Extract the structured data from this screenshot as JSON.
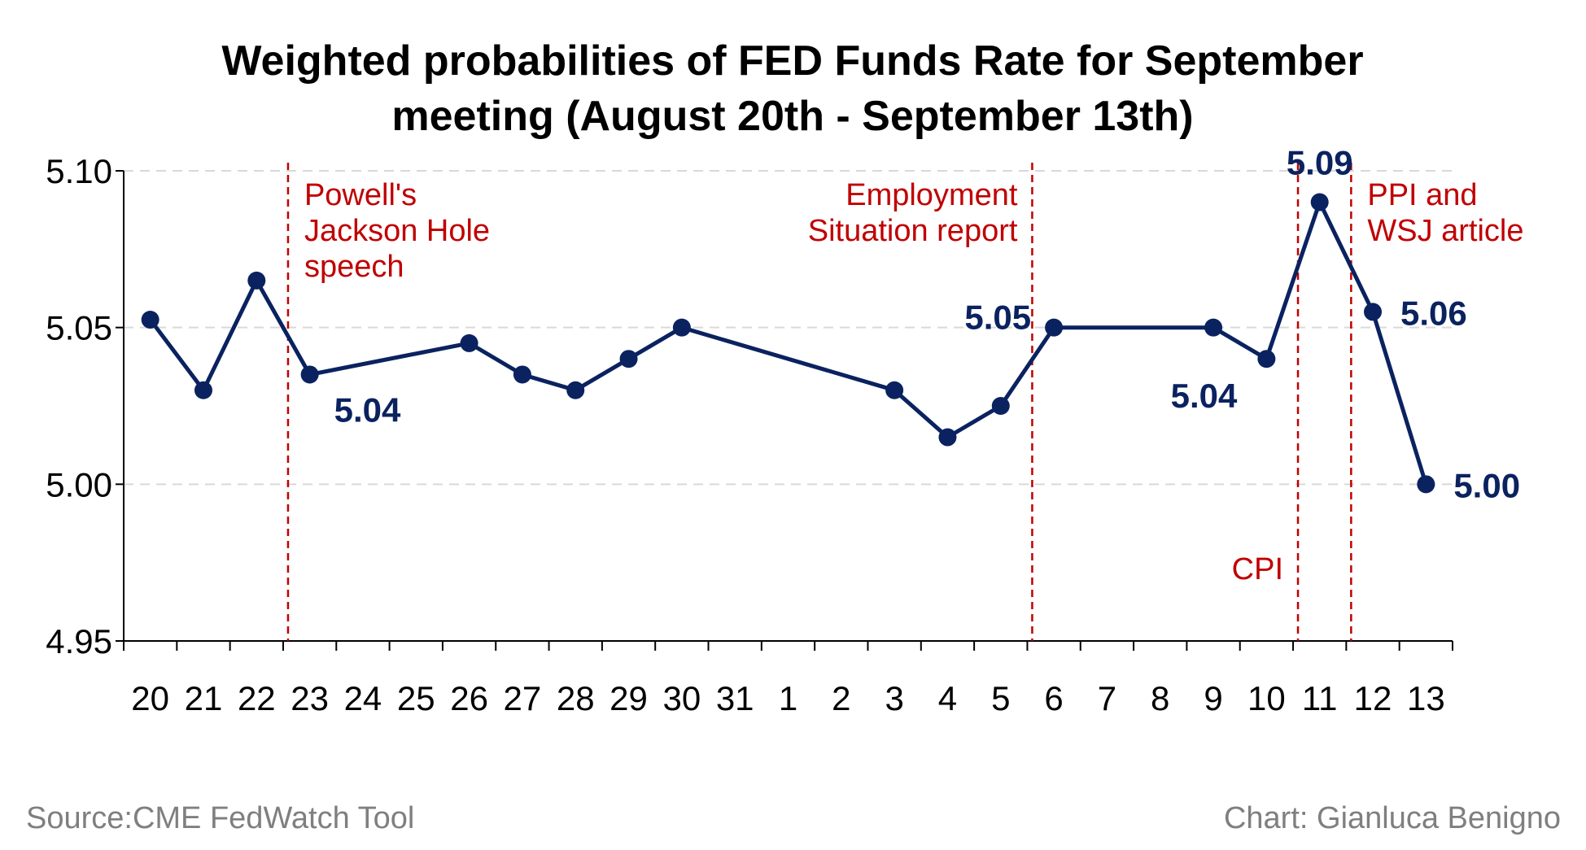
{
  "chart_data": {
    "type": "line",
    "title_lines": [
      "Weighted probabilities of FED Funds Rate for September",
      "meeting (August 20th - September 13th)"
    ],
    "xlabel": "",
    "ylabel": "",
    "categories": [
      "20",
      "21",
      "22",
      "23",
      "24",
      "25",
      "26",
      "27",
      "28",
      "29",
      "30",
      "31",
      "1",
      "2",
      "3",
      "4",
      "5",
      "6",
      "7",
      "8",
      "9",
      "10",
      "11",
      "12",
      "13"
    ],
    "series": [
      {
        "color": "#0b2260",
        "points": [
          {
            "x": "20",
            "y": 5.0525
          },
          {
            "x": "21",
            "y": 5.03
          },
          {
            "x": "22",
            "y": 5.065
          },
          {
            "x": "23",
            "y": 5.035
          },
          {
            "x": "26",
            "y": 5.045
          },
          {
            "x": "27",
            "y": 5.035
          },
          {
            "x": "28",
            "y": 5.03
          },
          {
            "x": "29",
            "y": 5.04
          },
          {
            "x": "30",
            "y": 5.05
          },
          {
            "x": "3",
            "y": 5.03
          },
          {
            "x": "4",
            "y": 5.015
          },
          {
            "x": "5",
            "y": 5.025
          },
          {
            "x": "6",
            "y": 5.05
          },
          {
            "x": "9",
            "y": 5.05
          },
          {
            "x": "10",
            "y": 5.04
          },
          {
            "x": "11",
            "y": 5.09
          },
          {
            "x": "12",
            "y": 5.055
          },
          {
            "x": "13",
            "y": 5.0
          }
        ]
      }
    ],
    "yticks": [
      "4.95",
      "5.00",
      "5.05",
      "5.10"
    ],
    "ylim": [
      4.95,
      5.1
    ],
    "grid": "horizontal dashed",
    "data_labels": [
      {
        "x": "23",
        "y": 5.035,
        "text": "5.04",
        "position": "below-right"
      },
      {
        "x": "6",
        "y": 5.05,
        "text": "5.05",
        "position": "left"
      },
      {
        "x": "10",
        "y": 5.04,
        "text": "5.04",
        "position": "below-left"
      },
      {
        "x": "11",
        "y": 5.09,
        "text": "5.09",
        "position": "above"
      },
      {
        "x": "12",
        "y": 5.055,
        "text": "5.06",
        "position": "right"
      },
      {
        "x": "13",
        "y": 5.0,
        "text": "5.00",
        "position": "right"
      }
    ],
    "event_lines": [
      {
        "x": "23",
        "label_lines": [
          "Powell's",
          "Jackson Hole",
          "speech"
        ],
        "label_side": "right",
        "label_v": "top"
      },
      {
        "x": "6",
        "label_lines": [
          "Employment",
          "Situation report"
        ],
        "label_side": "left",
        "label_v": "top"
      },
      {
        "x": "11",
        "label_lines": [
          "CPI"
        ],
        "label_side": "left",
        "label_v": "bottom"
      },
      {
        "x": "12",
        "label_lines": [
          "PPI and",
          "WSJ article"
        ],
        "label_side": "right",
        "label_v": "top"
      }
    ],
    "colors": {
      "line": "#0b2260",
      "event": "#c00000",
      "grid": "#d9d9d9"
    }
  },
  "footer": {
    "source": "Source:CME FedWatch Tool",
    "credit": "Chart: Gianluca Benigno"
  }
}
